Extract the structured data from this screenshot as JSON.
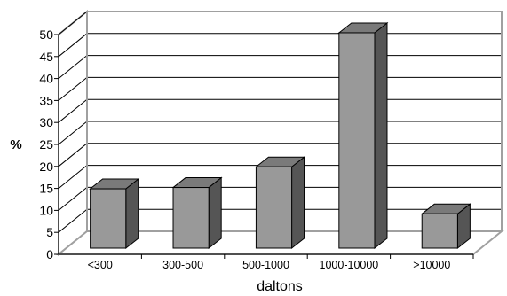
{
  "chart_data": {
    "type": "bar",
    "categories": [
      "<300",
      "300-500",
      "500-1000",
      "1000-10000",
      ">10000"
    ],
    "values": [
      13.5,
      13.8,
      18.5,
      49,
      7.8
    ],
    "xlabel": "daltons",
    "ylabel": "%",
    "ylim": [
      0,
      50
    ],
    "yticks": [
      0,
      5,
      10,
      15,
      20,
      25,
      30,
      35,
      40,
      45,
      50
    ],
    "grid": true,
    "style": "3d-column",
    "colors": {
      "bar_front": "#999999",
      "bar_side": "#555555",
      "bar_top": "#7a7a7a",
      "grid": "#000000",
      "wall": "#ffffff",
      "frame": "#a0a0a0"
    }
  }
}
